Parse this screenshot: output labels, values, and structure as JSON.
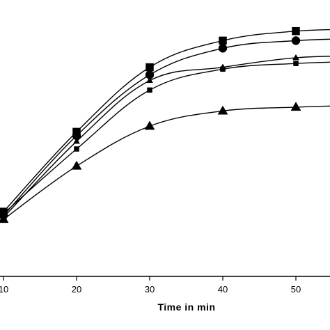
{
  "chart_data": {
    "type": "line",
    "title": "",
    "xlabel": "Time in min",
    "ylabel": "",
    "x": [
      10,
      20,
      30,
      40,
      50
    ],
    "xticks": [
      "10",
      "20",
      "30",
      "40",
      "50"
    ],
    "xlim": [
      10,
      58.5
    ],
    "ylim": [
      0,
      100
    ],
    "grid": false,
    "series": [
      {
        "marker": "square-large",
        "values": [
          4,
          46,
          80,
          94,
          99
        ],
        "end": [
          58.5,
          100
        ]
      },
      {
        "marker": "circle",
        "values": [
          2,
          44,
          76,
          90,
          94
        ],
        "end": [
          58.5,
          95
        ]
      },
      {
        "marker": "triangle-small",
        "values": [
          1,
          41,
          73,
          80,
          85
        ],
        "end": [
          58.5,
          86
        ]
      },
      {
        "marker": "square-small",
        "values": [
          3,
          37,
          68,
          79,
          82
        ],
        "end": [
          58.5,
          83
        ]
      },
      {
        "marker": "triangle-large",
        "values": [
          0,
          28,
          49,
          57,
          59
        ],
        "end": [
          58.5,
          60
        ]
      }
    ]
  }
}
